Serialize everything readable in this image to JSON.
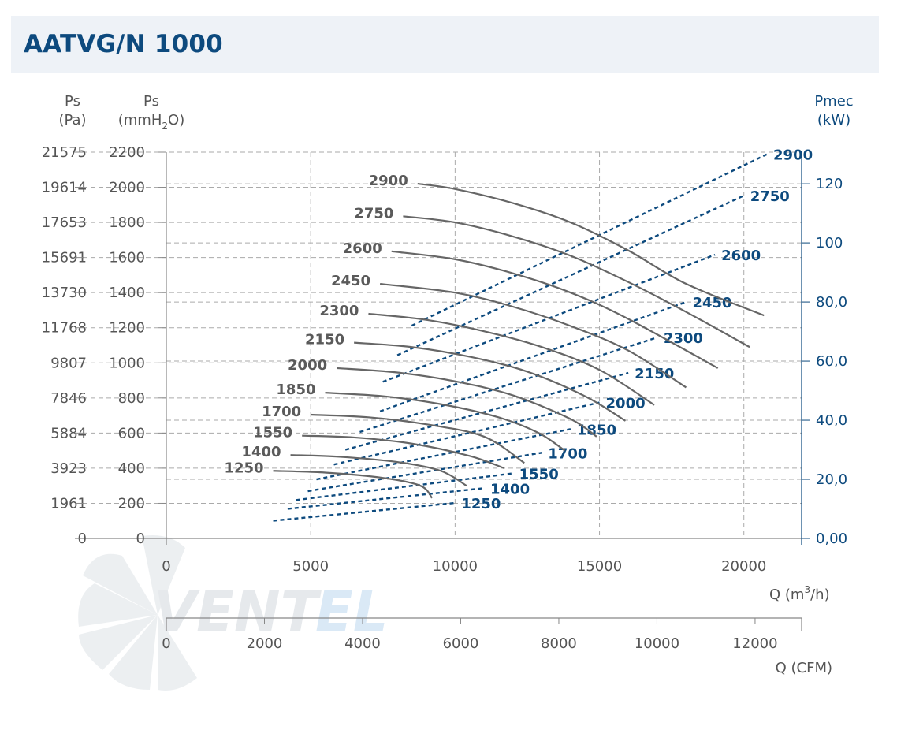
{
  "title": "AATVG/N 1000",
  "chart_data": {
    "type": "line",
    "title": "AATVG/N 1000",
    "axes": {
      "left_outer": {
        "label_line1": "Ps",
        "label_line2": "(Pa)",
        "ticks": [
          "0",
          "1961",
          "3923",
          "5884",
          "7846",
          "9807",
          "11768",
          "13730",
          "15691",
          "17653",
          "19614",
          "21575"
        ]
      },
      "left_inner": {
        "label_line1": "Ps",
        "label_line2a": "(mmH",
        "label_sub": "2",
        "label_line2b": "O)",
        "ticks": [
          "0",
          "200",
          "400",
          "600",
          "800",
          "1000",
          "1200",
          "1400",
          "1600",
          "1800",
          "2000",
          "2200"
        ],
        "ylim": [
          0,
          2200
        ]
      },
      "right": {
        "label_line1": "Pmec",
        "label_line2": "(kW)",
        "ticks": [
          "0,00",
          "20,0",
          "40,0",
          "60,0",
          "80,0",
          "100",
          "120"
        ],
        "ylim": [
          0,
          130.7
        ]
      },
      "bottom": {
        "label_a": "Q (m",
        "label_sup": "3",
        "label_b": "/h)",
        "ticks": [
          "0",
          "5000",
          "10000",
          "15000",
          "20000"
        ],
        "xlim": [
          0,
          22000
        ]
      },
      "bottom_cfm": {
        "label": "Q (CFM)",
        "ticks": [
          "0",
          "2000",
          "4000",
          "6000",
          "8000",
          "10000",
          "12000"
        ]
      }
    },
    "grid": true,
    "pressure_series": [
      {
        "name": "2900",
        "points": [
          [
            8700,
            2020
          ],
          [
            10000,
            1990
          ],
          [
            12000,
            1910
          ],
          [
            14000,
            1800
          ],
          [
            16000,
            1640
          ],
          [
            18000,
            1450
          ],
          [
            20700,
            1270
          ]
        ]
      },
      {
        "name": "2750",
        "points": [
          [
            8200,
            1835
          ],
          [
            10000,
            1800
          ],
          [
            12000,
            1720
          ],
          [
            14000,
            1610
          ],
          [
            16000,
            1460
          ],
          [
            18000,
            1290
          ],
          [
            20200,
            1090
          ]
        ]
      },
      {
        "name": "2600",
        "points": [
          [
            7800,
            1635
          ],
          [
            10000,
            1590
          ],
          [
            12000,
            1510
          ],
          [
            14000,
            1400
          ],
          [
            16000,
            1250
          ],
          [
            19100,
            970
          ]
        ]
      },
      {
        "name": "2450",
        "points": [
          [
            7400,
            1450
          ],
          [
            10000,
            1400
          ],
          [
            12000,
            1320
          ],
          [
            14000,
            1210
          ],
          [
            16000,
            1070
          ],
          [
            18000,
            860
          ]
        ]
      },
      {
        "name": "2300",
        "points": [
          [
            7000,
            1280
          ],
          [
            9000,
            1245
          ],
          [
            11000,
            1180
          ],
          [
            13000,
            1090
          ],
          [
            15000,
            960
          ],
          [
            16900,
            760
          ]
        ]
      },
      {
        "name": "2150",
        "points": [
          [
            6500,
            1115
          ],
          [
            8500,
            1090
          ],
          [
            10500,
            1035
          ],
          [
            12500,
            950
          ],
          [
            14500,
            810
          ],
          [
            15900,
            670
          ]
        ]
      },
      {
        "name": "2000",
        "points": [
          [
            5900,
            970
          ],
          [
            8000,
            945
          ],
          [
            10000,
            895
          ],
          [
            12000,
            815
          ],
          [
            14000,
            680
          ],
          [
            14900,
            580
          ]
        ]
      },
      {
        "name": "1850",
        "points": [
          [
            5500,
            830
          ],
          [
            7500,
            810
          ],
          [
            9500,
            765
          ],
          [
            11500,
            690
          ],
          [
            12900,
            600
          ],
          [
            13800,
            500
          ]
        ]
      },
      {
        "name": "1700",
        "points": [
          [
            5000,
            705
          ],
          [
            7000,
            690
          ],
          [
            9000,
            650
          ],
          [
            11000,
            580
          ],
          [
            12400,
            430
          ]
        ]
      },
      {
        "name": "1550",
        "points": [
          [
            4700,
            585
          ],
          [
            6500,
            575
          ],
          [
            8500,
            540
          ],
          [
            10500,
            470
          ],
          [
            11700,
            400
          ]
        ]
      },
      {
        "name": "1400",
        "points": [
          [
            4300,
            475
          ],
          [
            6000,
            465
          ],
          [
            8000,
            435
          ],
          [
            9500,
            385
          ],
          [
            10400,
            300
          ]
        ]
      },
      {
        "name": "1250",
        "points": [
          [
            3700,
            385
          ],
          [
            5500,
            375
          ],
          [
            7500,
            345
          ],
          [
            8800,
            300
          ],
          [
            9200,
            230
          ]
        ]
      }
    ],
    "power_series": [
      {
        "name": "2900",
        "x": [
          8500,
          20800
        ],
        "y": [
          72,
          130
        ]
      },
      {
        "name": "2750",
        "x": [
          8000,
          20000
        ],
        "y": [
          62,
          116
        ]
      },
      {
        "name": "2600",
        "x": [
          7500,
          19000
        ],
        "y": [
          53,
          96
        ]
      },
      {
        "name": "2450",
        "x": [
          7400,
          18000
        ],
        "y": [
          43,
          80
        ]
      },
      {
        "name": "2300",
        "x": [
          6700,
          17000
        ],
        "y": [
          36,
          68
        ]
      },
      {
        "name": "2150",
        "x": [
          6200,
          16000
        ],
        "y": [
          30,
          56
        ]
      },
      {
        "name": "2000",
        "x": [
          5800,
          15000
        ],
        "y": [
          25,
          46
        ]
      },
      {
        "name": "1850",
        "x": [
          5200,
          14000
        ],
        "y": [
          20,
          37
        ]
      },
      {
        "name": "1700",
        "x": [
          4900,
          13000
        ],
        "y": [
          16,
          29
        ]
      },
      {
        "name": "1550",
        "x": [
          4500,
          12000
        ],
        "y": [
          13,
          22
        ]
      },
      {
        "name": "1400",
        "x": [
          4200,
          11000
        ],
        "y": [
          10,
          17
        ]
      },
      {
        "name": "1250",
        "x": [
          3700,
          10000
        ],
        "y": [
          6,
          12
        ]
      }
    ],
    "colors": {
      "pressure": "#666666",
      "power": "#0d4a7e",
      "grid": "#aaaaaa",
      "tick": "#555555"
    }
  }
}
